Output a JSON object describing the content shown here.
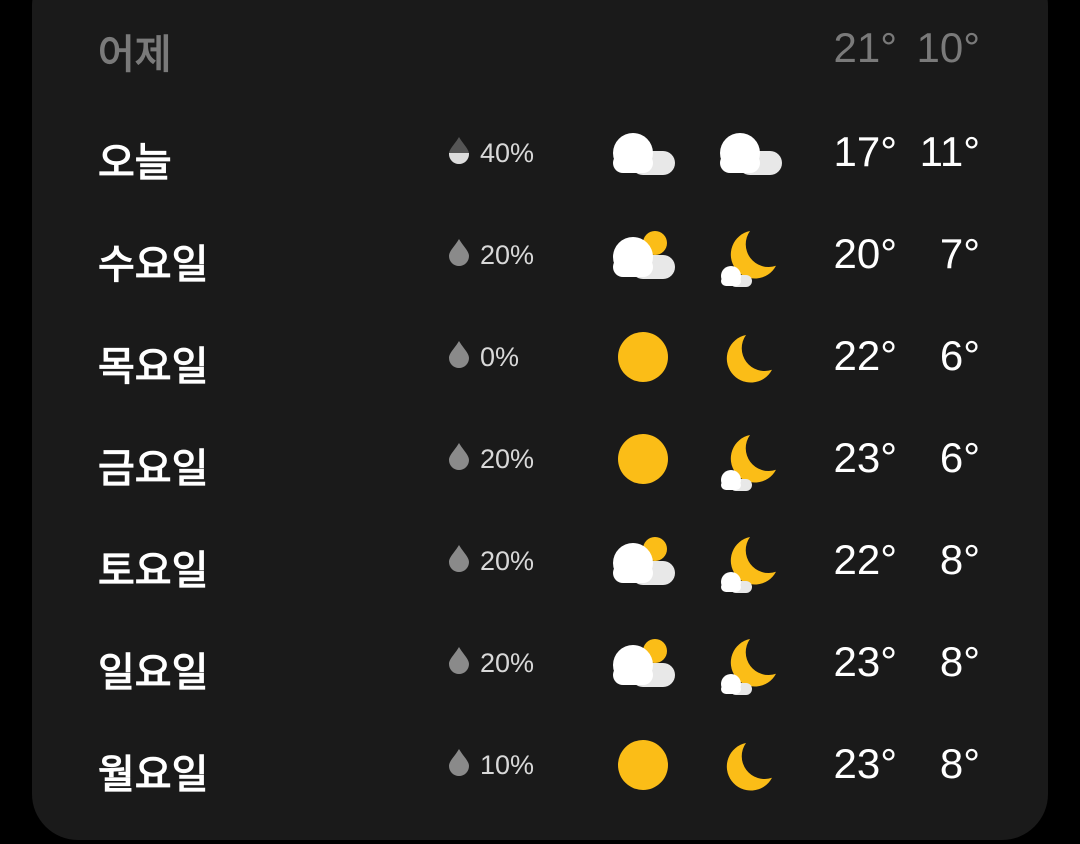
{
  "colors": {
    "card": "#1a1a1a",
    "sun": "#fbbd17",
    "cloud": "#ffffff",
    "muted": "#7a7a7a"
  },
  "yesterday": {
    "label": "어제",
    "high": "21°",
    "low": "10°"
  },
  "days": [
    {
      "label": "오늘",
      "precip": "40%",
      "drop": "half-drop-icon",
      "day_icon": "cloudy",
      "night_icon": "cloudy",
      "high": "17°",
      "low": "11°"
    },
    {
      "label": "수요일",
      "precip": "20%",
      "drop": "drop-icon",
      "day_icon": "partly-cloudy-day",
      "night_icon": "partly-cloudy-night",
      "high": "20°",
      "low": "7°"
    },
    {
      "label": "목요일",
      "precip": "0%",
      "drop": "drop-icon",
      "day_icon": "sunny",
      "night_icon": "clear-night",
      "high": "22°",
      "low": "6°"
    },
    {
      "label": "금요일",
      "precip": "20%",
      "drop": "drop-icon",
      "day_icon": "sunny",
      "night_icon": "partly-cloudy-night",
      "high": "23°",
      "low": "6°"
    },
    {
      "label": "토요일",
      "precip": "20%",
      "drop": "drop-icon",
      "day_icon": "partly-cloudy-day",
      "night_icon": "partly-cloudy-night",
      "high": "22°",
      "low": "8°"
    },
    {
      "label": "일요일",
      "precip": "20%",
      "drop": "drop-icon",
      "day_icon": "partly-cloudy-day",
      "night_icon": "partly-cloudy-night",
      "high": "23°",
      "low": "8°"
    },
    {
      "label": "월요일",
      "precip": "10%",
      "drop": "drop-icon",
      "day_icon": "sunny",
      "night_icon": "clear-night",
      "high": "23°",
      "low": "8°"
    }
  ]
}
